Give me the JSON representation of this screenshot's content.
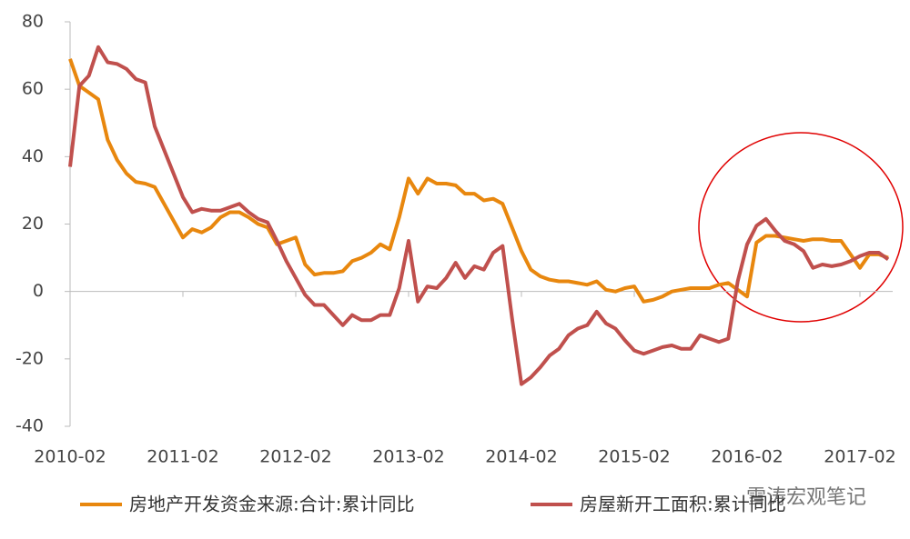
{
  "chart_data": {
    "type": "line",
    "categories": [
      "2010-02",
      null,
      null,
      null,
      null,
      null,
      null,
      null,
      null,
      null,
      null,
      null,
      "2011-02",
      null,
      null,
      null,
      null,
      null,
      null,
      null,
      null,
      null,
      null,
      null,
      "2012-02",
      null,
      null,
      null,
      null,
      null,
      null,
      null,
      null,
      null,
      null,
      null,
      "2013-02",
      null,
      null,
      null,
      null,
      null,
      null,
      null,
      null,
      null,
      null,
      null,
      "2014-02",
      null,
      null,
      null,
      null,
      null,
      null,
      null,
      null,
      null,
      null,
      null,
      "2015-02",
      null,
      null,
      null,
      null,
      null,
      null,
      null,
      null,
      null,
      null,
      null,
      "2016-02",
      null,
      null,
      null,
      null,
      null,
      null,
      null,
      null,
      null,
      null,
      null,
      "2017-02",
      null,
      null,
      null
    ],
    "series": [
      {
        "name": "房地产开发资金来源:合计:累计同比",
        "color": "#e8870e",
        "values": [
          69,
          61,
          59,
          57,
          45,
          39,
          35,
          32.5,
          32,
          31,
          26,
          21,
          16,
          18.5,
          17.5,
          19,
          22,
          23.5,
          23.5,
          22,
          20,
          19,
          14,
          15,
          16,
          8,
          5,
          5.5,
          5.5,
          6,
          9,
          10,
          11.5,
          14,
          12.5,
          22,
          33.5,
          29,
          33.5,
          32,
          32,
          31.5,
          29,
          29,
          27,
          27.5,
          26,
          19,
          12,
          6.5,
          4.5,
          3.5,
          3,
          3,
          2.5,
          2,
          3,
          0.5,
          0,
          1,
          1.5,
          -3,
          -2.5,
          -1.5,
          0,
          0.5,
          1,
          1,
          1,
          2,
          2.5,
          0.5,
          -1.5,
          14.5,
          16.5,
          16.5,
          16,
          15.5,
          15,
          15.5,
          15.5,
          15,
          15,
          11,
          7,
          11,
          11,
          10
        ]
      },
      {
        "name": "房屋新开工面积:累计同比",
        "color": "#c0504d",
        "values": [
          37,
          61,
          64,
          72.5,
          68,
          67.5,
          66,
          63,
          62,
          49,
          42,
          35,
          28,
          23.5,
          24.5,
          24,
          24,
          25,
          26,
          23.5,
          21.5,
          20.5,
          15,
          9,
          4,
          -1,
          -4,
          -4,
          -7,
          -10,
          -7,
          -8.5,
          -8.5,
          -7,
          -7,
          1,
          15,
          -3,
          1.5,
          1,
          4,
          8.5,
          4,
          7.5,
          6.5,
          11.5,
          13.5,
          -8,
          -27.5,
          -25.5,
          -22.5,
          -19,
          -17,
          -13,
          -11,
          -10,
          -6,
          -9.5,
          -11,
          -14.5,
          -17.5,
          -18.5,
          -17.5,
          -16.5,
          -16,
          -17,
          -17,
          -13,
          -14,
          -15,
          -14,
          3,
          14,
          19.5,
          21.5,
          18,
          15,
          14,
          12,
          7,
          8,
          7.5,
          8,
          9,
          10.5,
          11.5,
          11.5,
          9.5
        ]
      }
    ],
    "ylim": [
      -40,
      80
    ],
    "yticks": [
      -40,
      -20,
      0,
      20,
      40,
      60,
      80
    ],
    "watermark": "雪涛宏观笔记"
  }
}
